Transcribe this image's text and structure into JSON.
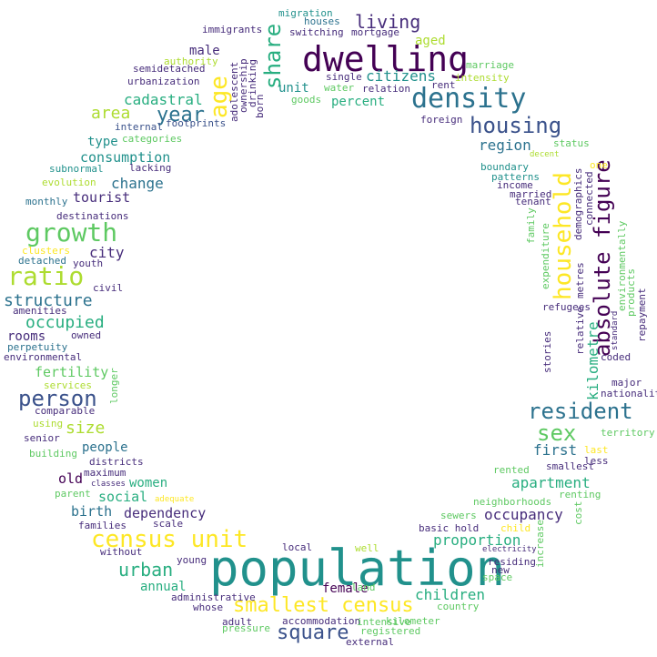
{
  "words": {
    "population": "population",
    "dwelling": "dwelling",
    "density": "density",
    "housing": "housing",
    "household": "household",
    "absolute_figure": "absolute figure",
    "census_unit": "census unit",
    "smallest_census": "smallest census",
    "growth": "growth",
    "ratio": "ratio",
    "person": "person",
    "resident": "resident",
    "sex": "sex",
    "share": "share",
    "age": "age",
    "year": "year",
    "living": "living",
    "square": "square",
    "urban": "urban",
    "structure": "structure",
    "occupied": "occupied",
    "size": "size",
    "area": "area",
    "occupancy": "occupancy",
    "proportion": "proportion",
    "children": "children",
    "kilometre": "kilometre",
    "first": "first",
    "apartment": "apartment",
    "region": "region",
    "citizens": "citizens",
    "aged": "aged",
    "cadastral": "cadastral",
    "consumption": "consumption",
    "change": "change",
    "tourist": "tourist",
    "city": "city",
    "fertility": "fertility",
    "rooms": "rooms",
    "people": "people",
    "old": "old",
    "women": "women",
    "social": "social",
    "birth": "birth",
    "dependency": "dependency",
    "annual": "annual",
    "female": "female",
    "male": "male",
    "type": "type",
    "percent": "percent",
    "unit": "unit",
    "migration": "migration",
    "houses": "houses",
    "immigrants": "immigrants",
    "switching": "switching",
    "mortgage": "mortgage",
    "authority": "authority",
    "semidetached": "semidetached",
    "urbanization": "urbanization",
    "internal": "internal",
    "footprints": "footprints",
    "categories": "categories",
    "subnormal": "subnormal",
    "lacking": "lacking",
    "evolution": "evolution",
    "monthly": "monthly",
    "destinations": "destinations",
    "clusters": "clusters",
    "detached": "detached",
    "youth": "youth",
    "civil": "civil",
    "amenities": "amenities",
    "perpetuity": "perpetuity",
    "owned": "owned",
    "environmental": "environmental",
    "services": "services",
    "comparable": "comparable",
    "using": "using",
    "senior": "senior",
    "building": "building",
    "districts": "districts",
    "maximum": "maximum",
    "classes": "classes",
    "parent": "parent",
    "adequate": "adequate",
    "families": "families",
    "scale": "scale",
    "without": "without",
    "young": "young",
    "administrative": "administrative",
    "whose": "whose",
    "adult": "adult",
    "accommodation": "accommodation",
    "pressure": "pressure",
    "intensive": "intensive",
    "registered": "registered",
    "external": "external",
    "kilometer": "kilometer",
    "land": "land",
    "country": "country",
    "local": "local",
    "well": "well",
    "basic_hold": "basic hold",
    "residing": "residing",
    "new": "new",
    "space": "space",
    "electricity": "electricity",
    "sewers": "sewers",
    "child": "child",
    "neighborhoods": "neighborhoods",
    "cost": "cost",
    "renting": "renting",
    "rented": "rented",
    "smallest": "smallest",
    "less": "less",
    "last": "last",
    "territory": "territory",
    "nationality": "nationality",
    "major": "major",
    "coded": "coded",
    "standard": "standard",
    "stories": "stories",
    "relative": "relative",
    "refugees": "refugees",
    "metres": "metres",
    "expenditure": "expenditure",
    "family": "family",
    "tenant": "tenant",
    "married": "married",
    "income": "income",
    "patterns": "patterns",
    "boundary": "boundary",
    "decent": "decent",
    "status": "status",
    "one": "one",
    "demographics": "demographics",
    "connected": "connected",
    "environmentally": "environmentally",
    "products": "products",
    "repayment": "repayment",
    "foreign": "foreign",
    "rent": "rent",
    "intensity": "intensity",
    "marriage": "marriage",
    "single": "single",
    "water": "water",
    "relation": "relation",
    "goods": "goods",
    "adolescent": "adolescent",
    "ownership": "ownership",
    "drinking": "drinking",
    "born": "born",
    "increase": "increase",
    "longer": "longer"
  },
  "colors": {
    "dark_purple": "#440154",
    "purple": "#472d7b",
    "indigo": "#3b528b",
    "blue": "#2c728e",
    "teal": "#21918c",
    "green_teal": "#28ae80",
    "green": "#5ec962",
    "lime": "#addc30",
    "yellow": "#fde725"
  }
}
